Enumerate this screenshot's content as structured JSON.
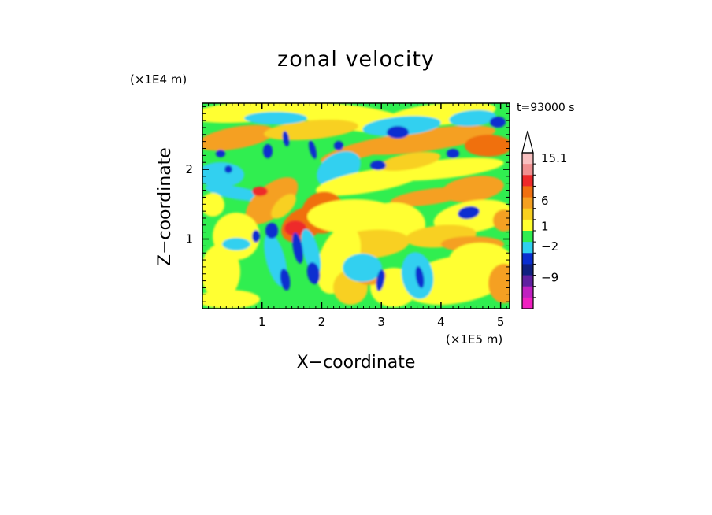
{
  "chart_data": {
    "type": "heatmap",
    "title": "zonal velocity",
    "xlabel": "X−coordinate",
    "ylabel": "Z−coordinate",
    "x_unit": "(×1E5 m)",
    "y_unit": "(×1E4 m)",
    "time_label": "t=93000 s",
    "xlim": [
      0,
      5.15
    ],
    "ylim": [
      0,
      2.95
    ],
    "xticks": [
      1,
      2,
      3,
      4,
      5
    ],
    "yticks": [
      1,
      2
    ],
    "xtick_labels": [
      "1",
      "2",
      "3",
      "4",
      "5"
    ],
    "ytick_labels": [
      "1",
      "2"
    ],
    "colorbar": {
      "labels": [
        "15.1",
        "6",
        "1",
        "−2",
        "−9"
      ],
      "label_levels": [
        15.1,
        6,
        1,
        -2,
        -9
      ],
      "bands": [
        {
          "color": "#f9c0c0"
        },
        {
          "color": "#f09090"
        },
        {
          "color": "#ee2a2a"
        },
        {
          "color": "#f07010"
        },
        {
          "color": "#f5a020"
        },
        {
          "color": "#f8d020"
        },
        {
          "color": "#ffff30"
        },
        {
          "color": "#30ee50"
        },
        {
          "color": "#30d0f0"
        },
        {
          "color": "#0a2ed0"
        },
        {
          "color": "#102080"
        },
        {
          "color": "#6020a0"
        },
        {
          "color": "#c020c0"
        },
        {
          "color": "#f020c0"
        }
      ],
      "extend_top": true
    },
    "field_colors": {
      "background": "#30ee50",
      "cyan": "#30d0f0",
      "yellow": "#ffff30",
      "light_orange": "#f8d020",
      "orange": "#f5a020",
      "dark_orange": "#f07010",
      "red": "#ee2a2a",
      "blue": "#0a2ed0"
    }
  }
}
